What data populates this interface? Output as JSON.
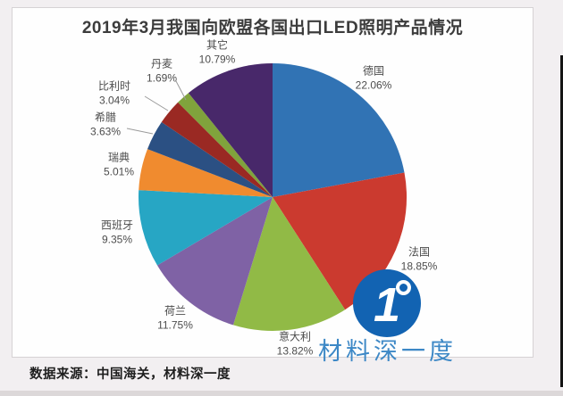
{
  "title": "2019年3月我国向欧盟各国出口LED照明产品情况",
  "source_note": "数据来源：中国海关，材料深一度",
  "watermark": {
    "logo_text": "1",
    "brand": "材料深一度",
    "logo_color": "#1263b2",
    "brand_color": "#3d88c6"
  },
  "chart_data": {
    "type": "pie",
    "title": "2019年3月我国向欧盟各国出口LED照明产品情况",
    "unit": "%",
    "start_angle": "12-oclock-clockwise",
    "legend_position": "none",
    "series": [
      {
        "key": "germany",
        "label": "德国",
        "value": 22.06,
        "color": "#3173b4"
      },
      {
        "key": "france",
        "label": "法国",
        "value": 18.85,
        "color": "#cb3a2f"
      },
      {
        "key": "italy",
        "label": "意大利",
        "value": 13.82,
        "color": "#91ba46"
      },
      {
        "key": "netherlands",
        "label": "荷兰",
        "value": 11.75,
        "color": "#7f62a5"
      },
      {
        "key": "spain",
        "label": "西班牙",
        "value": 9.35,
        "color": "#27a6c4"
      },
      {
        "key": "sweden",
        "label": "瑞典",
        "value": 5.01,
        "color": "#f08b2f"
      },
      {
        "key": "greece",
        "label": "希腊",
        "value": 3.63,
        "color": "#2b5083"
      },
      {
        "key": "belgium",
        "label": "比利时",
        "value": 3.04,
        "color": "#9a2923"
      },
      {
        "key": "denmark",
        "label": "丹麦",
        "value": 1.69,
        "color": "#80a33c"
      },
      {
        "key": "others",
        "label": "其它",
        "value": 10.79,
        "color": "#48286a"
      }
    ]
  }
}
